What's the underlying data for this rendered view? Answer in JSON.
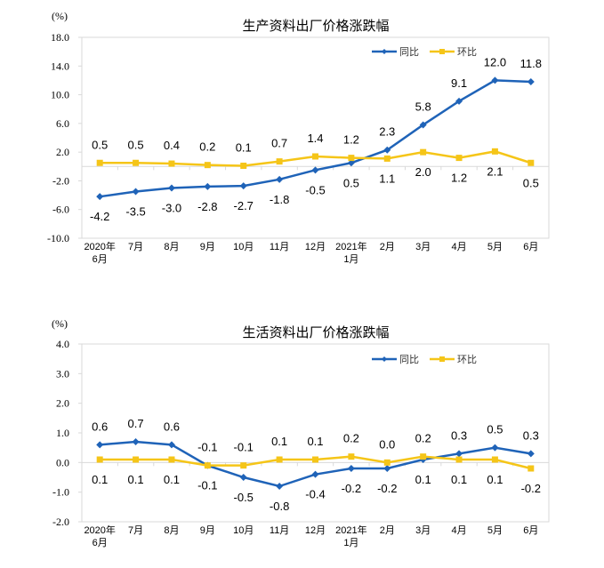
{
  "chart_data": [
    {
      "type": "line",
      "title": "生产资料出厂价格涨跌幅",
      "ylabel": "(%)",
      "ylim": [
        -10,
        18
      ],
      "ystep": 4,
      "yticks": [
        "-10.0",
        "-6.0",
        "-2.0",
        "2.0",
        "6.0",
        "10.0",
        "14.0",
        "18.0"
      ],
      "categories": [
        [
          "2020年",
          "6月"
        ],
        [
          "7月"
        ],
        [
          "8月"
        ],
        [
          "9月"
        ],
        [
          "10月"
        ],
        [
          "11月"
        ],
        [
          "12月"
        ],
        [
          "2021年",
          "1月"
        ],
        [
          "2月"
        ],
        [
          "3月"
        ],
        [
          "4月"
        ],
        [
          "5月"
        ],
        [
          "6月"
        ]
      ],
      "legend_position": "top-right",
      "grid": false,
      "series": [
        {
          "name": "同比",
          "color": "#1F63B8",
          "marker": "diamond",
          "values": [
            -4.2,
            -3.5,
            -3.0,
            -2.8,
            -2.7,
            -1.8,
            -0.5,
            0.5,
            2.3,
            5.8,
            9.1,
            12.0,
            11.8
          ],
          "labels": [
            "-4.2",
            "-3.5",
            "-3.0",
            "-2.8",
            "-2.7",
            "-1.8",
            "-0.5",
            "0.5",
            "2.3",
            "5.8",
            "9.1",
            "12.0",
            "11.8"
          ]
        },
        {
          "name": "环比",
          "color": "#F5C518",
          "marker": "square",
          "values": [
            0.5,
            0.5,
            0.4,
            0.2,
            0.1,
            0.7,
            1.4,
            1.2,
            1.1,
            2.0,
            1.2,
            2.1,
            0.5
          ],
          "labels": [
            "0.5",
            "0.5",
            "0.4",
            "0.2",
            "0.1",
            "0.7",
            "1.4",
            "1.2",
            "1.1",
            "2.0",
            "1.2",
            "2.1",
            "0.5"
          ]
        }
      ]
    },
    {
      "type": "line",
      "title": "生活资料出厂价格涨跌幅",
      "ylabel": "(%)",
      "ylim": [
        -2,
        4
      ],
      "ystep": 1,
      "yticks": [
        "-2.0",
        "-1.0",
        "0.0",
        "1.0",
        "2.0",
        "3.0",
        "4.0"
      ],
      "categories": [
        [
          "2020年",
          "6月"
        ],
        [
          "7月"
        ],
        [
          "8月"
        ],
        [
          "9月"
        ],
        [
          "10月"
        ],
        [
          "11月"
        ],
        [
          "12月"
        ],
        [
          "2021年",
          "1月"
        ],
        [
          "2月"
        ],
        [
          "3月"
        ],
        [
          "4月"
        ],
        [
          "5月"
        ],
        [
          "6月"
        ]
      ],
      "legend_position": "top-right",
      "grid": false,
      "series": [
        {
          "name": "同比",
          "color": "#1F63B8",
          "marker": "diamond",
          "values": [
            0.6,
            0.7,
            0.6,
            -0.1,
            -0.5,
            -0.8,
            -0.4,
            -0.2,
            -0.2,
            0.1,
            0.3,
            0.5,
            0.3
          ],
          "labels": [
            "0.6",
            "0.7",
            "0.6",
            "-0.1",
            "-0.5",
            "-0.8",
            "-0.4",
            "-0.2",
            "-0.2",
            "0.1",
            "0.3",
            "0.5",
            "0.3"
          ]
        },
        {
          "name": "环比",
          "color": "#F5C518",
          "marker": "square",
          "values": [
            0.1,
            0.1,
            0.1,
            -0.1,
            -0.1,
            0.1,
            0.1,
            0.2,
            0.0,
            0.2,
            0.1,
            0.1,
            -0.2
          ],
          "labels": [
            "0.1",
            "0.1",
            "0.1",
            "-0.1",
            "-0.1",
            "0.1",
            "0.1",
            "0.2",
            "0.0",
            "0.2",
            "0.1",
            "0.1",
            "-0.2"
          ]
        }
      ]
    }
  ]
}
